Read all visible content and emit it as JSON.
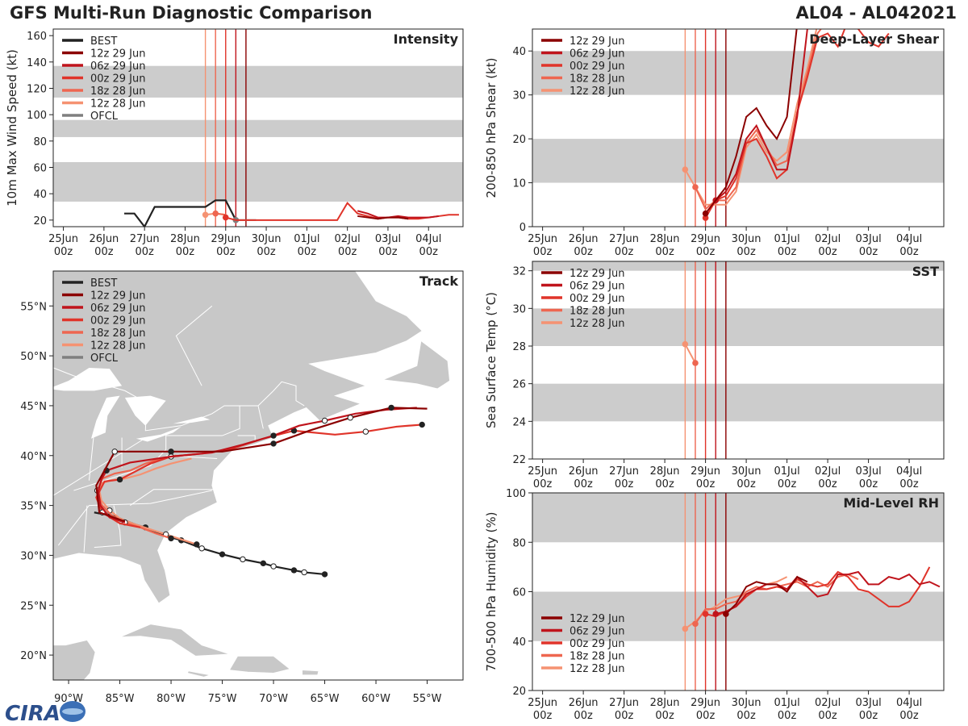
{
  "header": {
    "title": "GFS Multi-Run Diagnostic Comparison",
    "storm_id": "AL04 - AL042021"
  },
  "logo": {
    "text": "CIRA"
  },
  "time_axis_labels": [
    {
      "day": "25Jun",
      "hour": "00z"
    },
    {
      "day": "26Jun",
      "hour": "00z"
    },
    {
      "day": "27Jun",
      "hour": "00z"
    },
    {
      "day": "28Jun",
      "hour": "00z"
    },
    {
      "day": "29Jun",
      "hour": "00z"
    },
    {
      "day": "30Jun",
      "hour": "00z"
    },
    {
      "day": "01Jul",
      "hour": "00z"
    },
    {
      "day": "02Jul",
      "hour": "00z"
    },
    {
      "day": "03Jul",
      "hour": "00z"
    },
    {
      "day": "04Jul",
      "hour": "00z"
    }
  ],
  "run_colors": {
    "BEST": "#222222",
    "12z 29 Jun": "#8b0000",
    "06z 29 Jun": "#c0141c",
    "00z 29 Jun": "#e0342a",
    "18z 28 Jun": "#ee6650",
    "12z 28 Jun": "#f59272",
    "OFCL": "#7f7f7f"
  },
  "init_lines": {
    "times": [
      3.5,
      3.75,
      4.0,
      4.25,
      4.5
    ],
    "runs": [
      "12z 28 Jun",
      "18z 28 Jun",
      "00z 29 Jun",
      "06z 29 Jun",
      "12z 29 Jun"
    ]
  },
  "chart_data": [
    {
      "id": "intensity",
      "type": "line",
      "title": "Intensity",
      "ylabel": "10m Max Wind Speed (kt)",
      "xlim": [
        -0.25,
        9.85
      ],
      "ylim": [
        15,
        165
      ],
      "yticks": [
        20,
        40,
        60,
        80,
        100,
        120,
        140,
        160
      ],
      "bands": [
        [
          34,
          64
        ],
        [
          83,
          96
        ],
        [
          113,
          137
        ]
      ],
      "legend": [
        "BEST",
        "12z 29 Jun",
        "06z 29 Jun",
        "00z 29 Jun",
        "18z 28 Jun",
        "12z 28 Jun",
        "OFCL"
      ],
      "legend_position": "top-left",
      "series": [
        {
          "name": "BEST",
          "x": [
            1.5,
            1.75,
            2.0,
            2.25,
            2.5,
            2.75,
            3.0,
            3.25,
            3.5,
            3.75,
            4.0,
            4.25
          ],
          "y": [
            25,
            25,
            15,
            30,
            30,
            30,
            30,
            30,
            30,
            35,
            35,
            20
          ]
        },
        {
          "name": "OFCL",
          "x": [
            4.25,
            4.5,
            4.75
          ],
          "y": [
            20,
            20,
            20
          ]
        },
        {
          "name": "12z 28 Jun",
          "x": [
            3.5,
            3.75,
            4.0
          ],
          "y": [
            24,
            25,
            24
          ],
          "marker_first": true
        },
        {
          "name": "18z 28 Jun",
          "x": [
            3.75,
            4.0
          ],
          "y": [
            25,
            24
          ],
          "marker_first": true
        },
        {
          "name": "00z 29 Jun",
          "x": [
            4.0,
            4.25,
            6.5,
            6.75,
            7.0,
            7.25,
            7.5,
            7.75,
            8.0,
            8.25,
            8.5,
            8.75,
            9.0,
            9.25,
            9.5,
            9.75
          ],
          "y": [
            22,
            20,
            20,
            20,
            33,
            25,
            23,
            21,
            22,
            22,
            21,
            21,
            22,
            23,
            24,
            24
          ],
          "marker_first": true
        },
        {
          "name": "06z 29 Jun",
          "x": [
            7.25,
            7.5,
            7.75,
            8.0,
            8.25,
            8.5,
            8.75,
            9.0,
            9.25
          ],
          "y": [
            27,
            25,
            22,
            22,
            23,
            22,
            22,
            22,
            23
          ]
        },
        {
          "name": "12z 29 Jun",
          "x": [
            7.25,
            7.5,
            7.75,
            8.0,
            8.25,
            8.5
          ],
          "y": [
            23,
            22,
            21,
            22,
            22,
            21
          ]
        }
      ]
    },
    {
      "id": "shear",
      "type": "line",
      "title": "Deep-Layer Shear",
      "ylabel": "200-850 hPa Shear (kt)",
      "xlim": [
        -0.25,
        9.85
      ],
      "ylim": [
        0,
        45
      ],
      "yticks": [
        0,
        10,
        20,
        30,
        40
      ],
      "bands": [
        [
          10,
          20
        ],
        [
          30,
          40
        ]
      ],
      "legend": [
        "12z 29 Jun",
        "06z 29 Jun",
        "00z 29 Jun",
        "18z 28 Jun",
        "12z 28 Jun"
      ],
      "legend_position": "top-left",
      "series": [
        {
          "name": "12z 28 Jun",
          "x": [
            3.5,
            3.75,
            4.0,
            4.25,
            4.5,
            4.75,
            5.0,
            5.25,
            5.5,
            5.75,
            6.0,
            6.25,
            6.5,
            6.75,
            7.0
          ],
          "y": [
            13,
            9,
            5,
            5,
            5,
            8,
            18,
            21,
            17,
            15,
            17,
            28,
            36,
            46,
            48
          ],
          "marker_first": true
        },
        {
          "name": "18z 28 Jun",
          "x": [
            3.75,
            4.0,
            4.25,
            4.5,
            4.75,
            5.0,
            5.25,
            5.5,
            5.75,
            6.0,
            6.25,
            6.5,
            6.75,
            7.0
          ],
          "y": [
            9,
            4,
            6,
            6,
            9,
            19,
            22,
            18,
            14,
            15,
            26,
            35,
            44,
            47
          ],
          "marker_first": true
        },
        {
          "name": "00z 29 Jun",
          "x": [
            4.0,
            4.25,
            4.5,
            4.75,
            5.0,
            5.25,
            5.5,
            5.75,
            6.0,
            6.25,
            6.5,
            6.75,
            7.0,
            7.25,
            7.5,
            7.75,
            8.0,
            8.25,
            8.5
          ],
          "y": [
            2,
            6,
            7,
            11,
            19,
            20,
            16,
            11,
            13,
            26,
            34,
            43,
            44,
            41,
            47,
            45,
            42,
            41,
            44
          ],
          "marker_first": true
        },
        {
          "name": "06z 29 Jun",
          "x": [
            4.25,
            4.5,
            4.75,
            5.0,
            5.25,
            5.5,
            5.75,
            6.0,
            6.25,
            6.5,
            6.75,
            7.0,
            7.25
          ],
          "y": [
            6,
            8,
            12,
            20,
            23,
            18,
            13,
            13,
            25,
            45,
            47,
            46,
            48
          ],
          "marker_first": true
        },
        {
          "name": "12z 29 Jun",
          "x": [
            4.0,
            4.25,
            4.5,
            4.75,
            5.0,
            5.25,
            5.5,
            5.75,
            6.0,
            6.25,
            6.5,
            6.75
          ],
          "y": [
            3,
            6,
            9,
            16,
            25,
            27,
            23,
            20,
            25,
            46,
            46,
            47
          ],
          "marker_first": true
        }
      ]
    },
    {
      "id": "sst",
      "type": "line",
      "title": "SST",
      "ylabel": "Sea Surface Temp (°C)",
      "xlim": [
        -0.25,
        9.85
      ],
      "ylim": [
        22,
        32.5
      ],
      "yticks": [
        22,
        24,
        26,
        28,
        30,
        32
      ],
      "bands": [
        [
          24,
          26
        ],
        [
          28,
          30
        ],
        [
          32,
          33
        ]
      ],
      "legend": [
        "12z 29 Jun",
        "06z 29 Jun",
        "00z 29 Jun",
        "18z 28 Jun",
        "12z 28 Jun"
      ],
      "legend_position": "top-left",
      "series": [
        {
          "name": "12z 28 Jun",
          "x": [
            3.5,
            3.75
          ],
          "y": [
            28.1,
            27.1
          ],
          "marker_first": true
        },
        {
          "name": "18z 28 Jun",
          "x": [
            3.75
          ],
          "y": [
            27.1
          ],
          "marker_first": true
        }
      ]
    },
    {
      "id": "rh",
      "type": "line",
      "title": "Mid-Level RH",
      "ylabel": "700-500 hPa Humidity (%)",
      "xlim": [
        -0.25,
        9.85
      ],
      "ylim": [
        20,
        100
      ],
      "yticks": [
        20,
        40,
        60,
        80,
        100
      ],
      "bands": [
        [
          40,
          60
        ],
        [
          80,
          100
        ]
      ],
      "legend": [
        "12z 29 Jun",
        "06z 29 Jun",
        "00z 29 Jun",
        "18z 28 Jun",
        "12z 28 Jun"
      ],
      "legend_position": "bottom-left",
      "series": [
        {
          "name": "12z 28 Jun",
          "x": [
            3.5,
            3.75,
            4.0,
            4.25,
            4.5,
            4.75,
            5.0,
            5.25,
            5.5,
            5.75,
            6.0
          ],
          "y": [
            45,
            48,
            52,
            54,
            57,
            58,
            59,
            61,
            63,
            64,
            66
          ],
          "marker_first": true
        },
        {
          "name": "18z 28 Jun",
          "x": [
            3.75,
            4.0,
            4.25,
            4.5,
            4.75,
            5.0,
            5.25,
            5.5,
            5.75,
            6.0,
            6.25,
            6.5,
            6.75,
            7.0,
            7.25,
            7.5,
            7.75
          ],
          "y": [
            47,
            53,
            53,
            55,
            56,
            60,
            62,
            61,
            62,
            63,
            64,
            62,
            64,
            62,
            66,
            67,
            65
          ],
          "marker_first": true
        },
        {
          "name": "00z 29 Jun",
          "x": [
            4.0,
            4.25,
            4.5,
            4.75,
            5.0,
            5.25,
            5.5,
            5.75,
            6.0,
            6.25,
            6.5,
            6.75,
            7.0,
            7.25,
            7.5,
            7.75,
            8.0,
            8.25,
            8.5,
            8.75,
            9.0,
            9.25,
            9.5
          ],
          "y": [
            51,
            50,
            52,
            54,
            58,
            61,
            61,
            62,
            61,
            65,
            63,
            62,
            63,
            68,
            66,
            61,
            60,
            57,
            54,
            54,
            56,
            62,
            70
          ],
          "marker_first": true
        },
        {
          "name": "06z 29 Jun",
          "x": [
            4.25,
            4.5,
            4.75,
            5.0,
            5.25,
            5.5,
            5.75,
            6.0,
            6.25,
            6.5,
            6.75,
            7.0,
            7.25,
            7.5,
            7.75,
            8.0,
            8.25,
            8.5,
            8.75,
            9.0,
            9.25,
            9.5,
            9.75
          ],
          "y": [
            51,
            52,
            54,
            59,
            61,
            63,
            63,
            61,
            66,
            62,
            58,
            59,
            67,
            67,
            68,
            63,
            63,
            66,
            65,
            67,
            63,
            64,
            62
          ],
          "marker_first": true
        },
        {
          "name": "12z 29 Jun",
          "x": [
            4.5,
            4.75,
            5.0,
            5.25,
            5.5,
            5.75,
            6.0,
            6.25,
            6.5
          ],
          "y": [
            51,
            55,
            62,
            64,
            63,
            63,
            60,
            66,
            64
          ],
          "marker_first": true
        }
      ]
    },
    {
      "id": "track",
      "type": "scatter",
      "title": "Track",
      "xlim": [
        -91.5,
        -51.5
      ],
      "ylim": [
        17.5,
        58.5
      ],
      "xticks": [
        -90,
        -85,
        -80,
        -75,
        -70,
        -65,
        -60,
        -55
      ],
      "xtick_labels": [
        "90°W",
        "85°W",
        "80°W",
        "75°W",
        "70°W",
        "65°W",
        "60°W",
        "55°W"
      ],
      "yticks": [
        20,
        25,
        30,
        35,
        40,
        45,
        50,
        55
      ],
      "ytick_labels": [
        "20°N",
        "25°N",
        "30°N",
        "35°N",
        "40°N",
        "45°N",
        "50°N",
        "55°N"
      ],
      "legend": [
        "BEST",
        "12z 29 Jun",
        "06z 29 Jun",
        "00z 29 Jun",
        "18z 28 Jun",
        "12z 28 Jun",
        "OFCL"
      ],
      "legend_position": "top-left",
      "series": [
        {
          "name": "BEST",
          "lon": [
            -65,
            -67,
            -68,
            -70,
            -71,
            -73,
            -75,
            -77,
            -79,
            -81,
            -82.5,
            -84,
            -85.5,
            -86.5,
            -87,
            -87.5
          ],
          "lat": [
            28.1,
            28.3,
            28.5,
            28.9,
            29.2,
            29.6,
            30.1,
            30.7,
            31.5,
            32.1,
            32.7,
            33.3,
            33.9,
            34.2,
            34.2,
            34.3
          ],
          "filled": [
            0,
            2,
            4,
            6,
            8
          ],
          "open": [
            1,
            3,
            5,
            7
          ]
        },
        {
          "name": "OFCL",
          "lon": [
            -82.5,
            -83.5,
            -84.5
          ],
          "lat": [
            32.8,
            33.1,
            33.4
          ],
          "filled": [
            0
          ],
          "open": []
        },
        {
          "name": "12z 28 Jun",
          "lon": [
            -77.5,
            -79,
            -80.5,
            -82,
            -83.5,
            -85,
            -86,
            -86.8,
            -87,
            -86.8,
            -86,
            -84.5,
            -83,
            -81.5,
            -80,
            -78
          ],
          "lat": [
            31.1,
            31.6,
            32.1,
            32.6,
            33.1,
            33.7,
            34.5,
            35.5,
            36.5,
            37.2,
            37.5,
            37.7,
            38.1,
            38.7,
            39.2,
            39.7
          ],
          "filled": [
            0
          ],
          "open": [
            2,
            6
          ]
        },
        {
          "name": "18z 28 Jun",
          "lon": [
            -80,
            -81.5,
            -83,
            -84.5,
            -85.8,
            -86.8,
            -87.2,
            -86.7,
            -85.5,
            -84,
            -82.5,
            -81,
            -79.5
          ],
          "lat": [
            31.7,
            32.2,
            32.8,
            33.3,
            34,
            35.1,
            36.5,
            37.7,
            38.2,
            38.5,
            39.2,
            39.7,
            40
          ],
          "filled": [
            0
          ],
          "open": [
            3,
            6
          ]
        },
        {
          "name": "00z 29 Jun",
          "lon": [
            -83,
            -85,
            -86.7,
            -87.3,
            -86.5,
            -85,
            -83.5,
            -82,
            -80,
            -77,
            -74,
            -71,
            -68,
            -64,
            -61,
            -58,
            -55.5
          ],
          "lat": [
            32.8,
            33.2,
            34.3,
            35.8,
            37.4,
            37.6,
            38.4,
            39.2,
            39.9,
            40.2,
            40.7,
            41.7,
            42.5,
            42.1,
            42.4,
            42.9,
            43.1
          ],
          "filled": [
            5,
            12,
            16
          ],
          "open": [
            2,
            8,
            14
          ]
        },
        {
          "name": "06z 29 Jun",
          "lon": [
            -84.5,
            -86,
            -86.9,
            -87.1,
            -86.8,
            -86.3,
            -84,
            -80,
            -76,
            -73,
            -70,
            -67.5,
            -65,
            -62,
            -59,
            -56
          ],
          "lat": [
            33.3,
            33.8,
            35,
            36.5,
            37.6,
            38.5,
            39.3,
            39.9,
            40.3,
            41.1,
            42,
            43,
            43.5,
            44.2,
            44.6,
            44.8
          ],
          "filled": [
            5,
            10
          ],
          "open": [
            12
          ]
        },
        {
          "name": "12z 29 Jun",
          "lon": [
            -84.5,
            -87,
            -87.3,
            -86.5,
            -85.5,
            -80,
            -75,
            -70,
            -66.5,
            -62.5,
            -58.5,
            -55
          ],
          "lat": [
            33.4,
            34.3,
            37,
            38.5,
            40.4,
            40.4,
            40.4,
            41.2,
            42.5,
            43.8,
            44.8,
            44.7
          ],
          "filled": [
            5,
            7,
            10
          ],
          "open": [
            4,
            9
          ]
        }
      ]
    }
  ]
}
